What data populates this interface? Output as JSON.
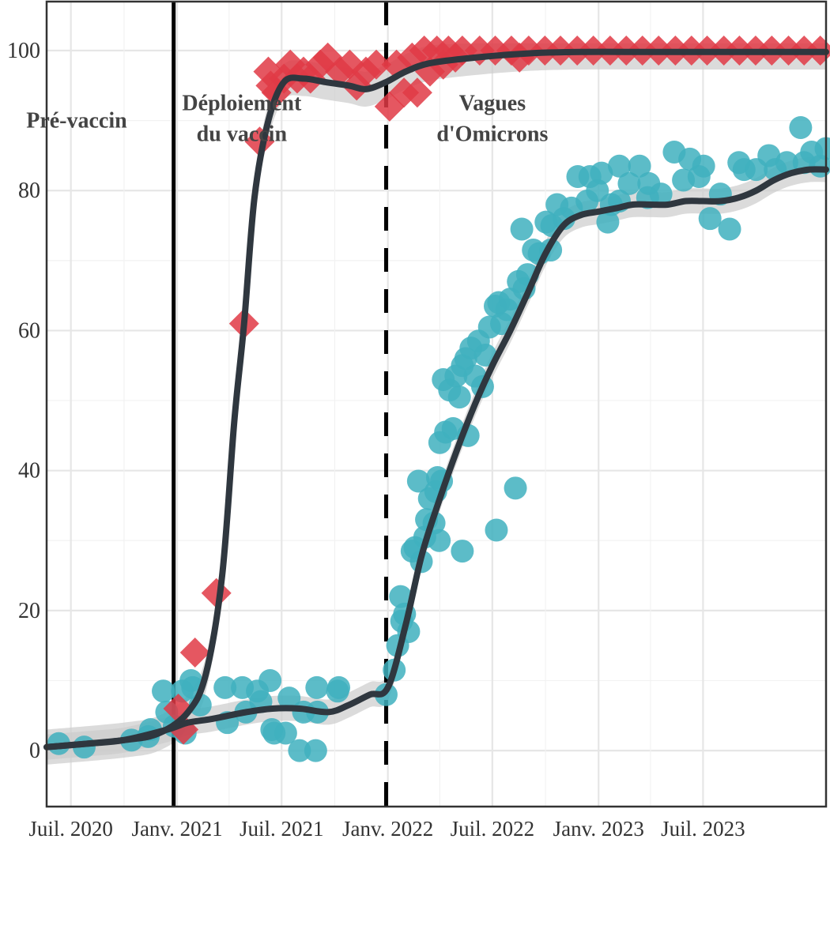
{
  "chart_data": {
    "type": "scatter",
    "title": "",
    "xlabel": "",
    "ylabel": "",
    "x_range": [
      "2020-05-20",
      "2024-01-30"
    ],
    "ylim": [
      -8,
      107
    ],
    "y_ticks": [
      0,
      20,
      40,
      60,
      80,
      100
    ],
    "x_ticks": [
      {
        "date": "2020-07-01",
        "label": "Juil. 2020"
      },
      {
        "date": "2021-01-01",
        "label": "Janv. 2021"
      },
      {
        "date": "2021-07-01",
        "label": "Juil. 2021"
      },
      {
        "date": "2022-01-01",
        "label": "Janv. 2022"
      },
      {
        "date": "2022-07-01",
        "label": "Juil. 2022"
      },
      {
        "date": "2023-01-01",
        "label": "Janv. 2023"
      },
      {
        "date": "2023-07-01",
        "label": "Juil. 2023"
      }
    ],
    "grid": true,
    "colors": {
      "diamond": "#e03a45",
      "circle": "#3fb0be",
      "trend": "#2f373f",
      "band": "#cccccc",
      "vline": "#000000"
    },
    "vlines": [
      {
        "date": "2020-12-26",
        "style": "solid"
      },
      {
        "date": "2021-12-29",
        "style": "dashed"
      }
    ],
    "phases": [
      {
        "lines": [
          "Pré-vaccin"
        ],
        "date": "2020-07-11",
        "y": 89
      },
      {
        "lines": [
          "Déploiement",
          "du vaccin"
        ],
        "date": "2021-04-23",
        "y": 91.5
      },
      {
        "lines": [
          "Vagues",
          "d'Omicrons"
        ],
        "date": "2022-07-01",
        "y": 91.5
      }
    ],
    "series": [
      {
        "marker": "diamond",
        "points": [
          [
            "2021-01-03",
            6
          ],
          [
            "2021-01-12",
            3
          ],
          [
            "2021-02-01",
            14
          ],
          [
            "2021-03-10",
            22.5
          ],
          [
            "2021-04-27",
            61
          ],
          [
            "2021-05-24",
            87
          ],
          [
            "2021-06-08",
            97
          ],
          [
            "2021-06-12",
            95
          ],
          [
            "2021-06-22",
            94
          ],
          [
            "2021-07-05",
            96
          ],
          [
            "2021-07-16",
            98
          ],
          [
            "2021-07-28",
            96
          ],
          [
            "2021-08-08",
            97
          ],
          [
            "2021-08-20",
            96
          ],
          [
            "2021-09-06",
            98
          ],
          [
            "2021-09-19",
            99
          ],
          [
            "2021-10-10",
            97
          ],
          [
            "2021-10-27",
            98
          ],
          [
            "2021-11-08",
            95
          ],
          [
            "2021-11-24",
            97
          ],
          [
            "2021-12-12",
            98
          ],
          [
            "2022-01-04",
            92
          ],
          [
            "2022-01-16",
            98
          ],
          [
            "2022-01-29",
            94
          ],
          [
            "2022-02-12",
            99
          ],
          [
            "2022-02-21",
            94
          ],
          [
            "2022-03-05",
            100
          ],
          [
            "2022-03-15",
            97
          ],
          [
            "2022-03-27",
            100
          ],
          [
            "2022-04-07",
            98
          ],
          [
            "2022-04-16",
            100
          ],
          [
            "2022-04-28",
            99
          ],
          [
            "2022-05-10",
            100
          ],
          [
            "2022-06-09",
            100
          ],
          [
            "2022-07-06",
            100
          ],
          [
            "2022-08-03",
            100
          ],
          [
            "2022-08-17",
            99
          ],
          [
            "2022-09-02",
            100
          ],
          [
            "2022-09-30",
            100
          ],
          [
            "2022-10-27",
            100
          ],
          [
            "2022-11-25",
            100
          ],
          [
            "2022-12-23",
            100
          ],
          [
            "2023-01-21",
            100
          ],
          [
            "2023-02-18",
            100
          ],
          [
            "2023-03-18",
            100
          ],
          [
            "2023-04-15",
            100
          ],
          [
            "2023-05-14",
            100
          ],
          [
            "2023-06-11",
            100
          ],
          [
            "2023-07-08",
            100
          ],
          [
            "2023-08-06",
            100
          ],
          [
            "2023-09-02",
            100
          ],
          [
            "2023-09-30",
            100
          ],
          [
            "2023-10-28",
            100
          ],
          [
            "2023-11-26",
            100
          ],
          [
            "2023-12-23",
            100
          ],
          [
            "2024-01-20",
            100
          ]
        ]
      },
      {
        "marker": "circle",
        "points": [
          [
            "2020-06-10",
            1
          ],
          [
            "2020-07-24",
            0.5
          ],
          [
            "2020-10-14",
            1.5
          ],
          [
            "2020-11-12",
            2
          ],
          [
            "2020-11-16",
            3
          ],
          [
            "2020-12-08",
            8.5
          ],
          [
            "2020-12-14",
            5.5
          ],
          [
            "2020-12-27",
            3.5
          ],
          [
            "2021-01-10",
            8.5
          ],
          [
            "2021-01-15",
            2.5
          ],
          [
            "2021-01-25",
            10
          ],
          [
            "2021-01-28",
            9
          ],
          [
            "2021-02-10",
            6.5
          ],
          [
            "2021-03-25",
            9
          ],
          [
            "2021-03-29",
            4
          ],
          [
            "2021-04-24",
            9
          ],
          [
            "2021-04-30",
            5.5
          ],
          [
            "2021-05-20",
            8.5
          ],
          [
            "2021-05-26",
            7
          ],
          [
            "2021-06-11",
            10
          ],
          [
            "2021-06-14",
            3
          ],
          [
            "2021-06-18",
            2.5
          ],
          [
            "2021-07-08",
            2.5
          ],
          [
            "2021-07-14",
            7.5
          ],
          [
            "2021-08-01",
            0
          ],
          [
            "2021-08-08",
            5.5
          ],
          [
            "2021-08-29",
            0
          ],
          [
            "2021-08-31",
            9
          ],
          [
            "2021-09-01",
            5.5
          ],
          [
            "2021-10-06",
            8.5
          ],
          [
            "2021-10-08",
            9
          ],
          [
            "2021-12-29",
            8
          ],
          [
            "2022-01-12",
            11.5
          ],
          [
            "2022-01-18",
            15
          ],
          [
            "2022-01-23",
            22
          ],
          [
            "2022-01-25",
            18.5
          ],
          [
            "2022-01-30",
            19.5
          ],
          [
            "2022-02-06",
            17
          ],
          [
            "2022-02-12",
            28.5
          ],
          [
            "2022-02-17",
            29
          ],
          [
            "2022-02-23",
            38.5
          ],
          [
            "2022-02-28",
            27
          ],
          [
            "2022-03-06",
            30.5
          ],
          [
            "2022-03-09",
            33
          ],
          [
            "2022-03-14",
            36
          ],
          [
            "2022-03-22",
            32.5
          ],
          [
            "2022-03-25",
            37
          ],
          [
            "2022-03-28",
            39
          ],
          [
            "2022-03-31",
            30
          ],
          [
            "2022-04-01",
            44
          ],
          [
            "2022-04-04",
            38.5
          ],
          [
            "2022-04-07",
            53
          ],
          [
            "2022-04-11",
            45.5
          ],
          [
            "2022-04-18",
            51.5
          ],
          [
            "2022-04-24",
            46
          ],
          [
            "2022-04-29",
            53.5
          ],
          [
            "2022-05-05",
            50.5
          ],
          [
            "2022-05-10",
            55
          ],
          [
            "2022-05-10",
            28.5
          ],
          [
            "2022-05-16",
            56
          ],
          [
            "2022-05-20",
            45
          ],
          [
            "2022-05-25",
            57.5
          ],
          [
            "2022-06-01",
            53.5
          ],
          [
            "2022-06-07",
            58.5
          ],
          [
            "2022-06-14",
            52
          ],
          [
            "2022-06-19",
            56.5
          ],
          [
            "2022-06-26",
            60.5
          ],
          [
            "2022-07-06",
            63.5
          ],
          [
            "2022-07-08",
            31.5
          ],
          [
            "2022-07-12",
            64
          ],
          [
            "2022-07-17",
            61
          ],
          [
            "2022-07-26",
            63
          ],
          [
            "2022-08-01",
            64.5
          ],
          [
            "2022-08-10",
            37.5
          ],
          [
            "2022-08-15",
            67
          ],
          [
            "2022-08-21",
            74.5
          ],
          [
            "2022-08-25",
            66
          ],
          [
            "2022-08-31",
            68
          ],
          [
            "2022-09-10",
            71.5
          ],
          [
            "2022-09-20",
            71
          ],
          [
            "2022-10-02",
            75.5
          ],
          [
            "2022-10-10",
            71.5
          ],
          [
            "2022-10-12",
            75
          ],
          [
            "2022-10-21",
            78
          ],
          [
            "2022-11-02",
            76
          ],
          [
            "2022-11-15",
            77.5
          ],
          [
            "2022-11-26",
            82
          ],
          [
            "2022-12-12",
            78.5
          ],
          [
            "2022-12-17",
            82
          ],
          [
            "2022-12-30",
            80
          ],
          [
            "2023-01-06",
            82.5
          ],
          [
            "2023-01-17",
            75.5
          ],
          [
            "2023-01-23",
            78
          ],
          [
            "2023-02-06",
            78.5
          ],
          [
            "2023-02-06",
            83.5
          ],
          [
            "2023-02-23",
            81
          ],
          [
            "2023-03-13",
            83.5
          ],
          [
            "2023-03-27",
            79
          ],
          [
            "2023-03-29",
            81
          ],
          [
            "2023-04-19",
            79.5
          ],
          [
            "2023-05-12",
            85.5
          ],
          [
            "2023-05-28",
            81.5
          ],
          [
            "2023-06-08",
            84.5
          ],
          [
            "2023-06-24",
            82
          ],
          [
            "2023-07-02",
            83.5
          ],
          [
            "2023-07-13",
            76
          ],
          [
            "2023-07-31",
            79.5
          ],
          [
            "2023-08-16",
            74.5
          ],
          [
            "2023-09-01",
            84
          ],
          [
            "2023-09-10",
            83
          ],
          [
            "2023-10-01",
            83
          ],
          [
            "2023-10-23",
            85
          ],
          [
            "2023-11-03",
            83
          ],
          [
            "2023-11-23",
            84
          ],
          [
            "2023-12-17",
            89
          ],
          [
            "2023-12-23",
            84
          ],
          [
            "2024-01-05",
            85.5
          ],
          [
            "2024-01-20",
            83.5
          ],
          [
            "2024-01-30",
            86
          ]
        ]
      }
    ],
    "trends": [
      {
        "band": 2.5,
        "points": [
          [
            "2020-05-20",
            0.5
          ],
          [
            "2020-10-01",
            1.5
          ],
          [
            "2020-12-01",
            2.5
          ],
          [
            "2021-01-20",
            5.5
          ],
          [
            "2021-02-20",
            11
          ],
          [
            "2021-03-20",
            25
          ],
          [
            "2021-04-10",
            47
          ],
          [
            "2021-04-27",
            61
          ],
          [
            "2021-05-15",
            79
          ],
          [
            "2021-06-08",
            90
          ],
          [
            "2021-07-05",
            95.5
          ],
          [
            "2021-08-08",
            96
          ],
          [
            "2021-09-15",
            95.5
          ],
          [
            "2021-10-25",
            95
          ],
          [
            "2021-11-25",
            94.5
          ],
          [
            "2021-12-29",
            95.5
          ],
          [
            "2022-02-01",
            97
          ],
          [
            "2022-03-15",
            98.2
          ],
          [
            "2022-06-01",
            99
          ],
          [
            "2022-09-01",
            99.6
          ],
          [
            "2022-12-01",
            99.8
          ],
          [
            "2023-04-01",
            99.8
          ],
          [
            "2023-08-01",
            99.8
          ],
          [
            "2024-01-30",
            99.8
          ]
        ]
      },
      {
        "band": 1.8,
        "points": [
          [
            "2020-05-20",
            0.5
          ],
          [
            "2020-08-01",
            1
          ],
          [
            "2020-10-01",
            1.5
          ],
          [
            "2020-12-15",
            3
          ],
          [
            "2021-01-20",
            4
          ],
          [
            "2021-03-01",
            4.5
          ],
          [
            "2021-05-01",
            5.5
          ],
          [
            "2021-06-15",
            6
          ],
          [
            "2021-08-01",
            6
          ],
          [
            "2021-09-20",
            5.5
          ],
          [
            "2021-10-25",
            6.5
          ],
          [
            "2021-12-01",
            8
          ],
          [
            "2022-01-01",
            9
          ],
          [
            "2022-02-01",
            18
          ],
          [
            "2022-03-01",
            28
          ],
          [
            "2022-04-01",
            36
          ],
          [
            "2022-05-01",
            43
          ],
          [
            "2022-06-01",
            49.5
          ],
          [
            "2022-07-01",
            55
          ],
          [
            "2022-08-01",
            60
          ],
          [
            "2022-09-01",
            65.5
          ],
          [
            "2022-10-01",
            71
          ],
          [
            "2022-11-01",
            75
          ],
          [
            "2022-12-01",
            76.5
          ],
          [
            "2023-01-01",
            77
          ],
          [
            "2023-02-01",
            77.5
          ],
          [
            "2023-03-01",
            78
          ],
          [
            "2023-04-01",
            78
          ],
          [
            "2023-05-01",
            78
          ],
          [
            "2023-06-01",
            78.5
          ],
          [
            "2023-07-01",
            78.5
          ],
          [
            "2023-08-01",
            78.5
          ],
          [
            "2023-09-01",
            79
          ],
          [
            "2023-10-01",
            80
          ],
          [
            "2023-11-01",
            81.5
          ],
          [
            "2023-12-01",
            82.5
          ],
          [
            "2024-01-01",
            83
          ],
          [
            "2024-01-30",
            83
          ]
        ]
      }
    ]
  }
}
